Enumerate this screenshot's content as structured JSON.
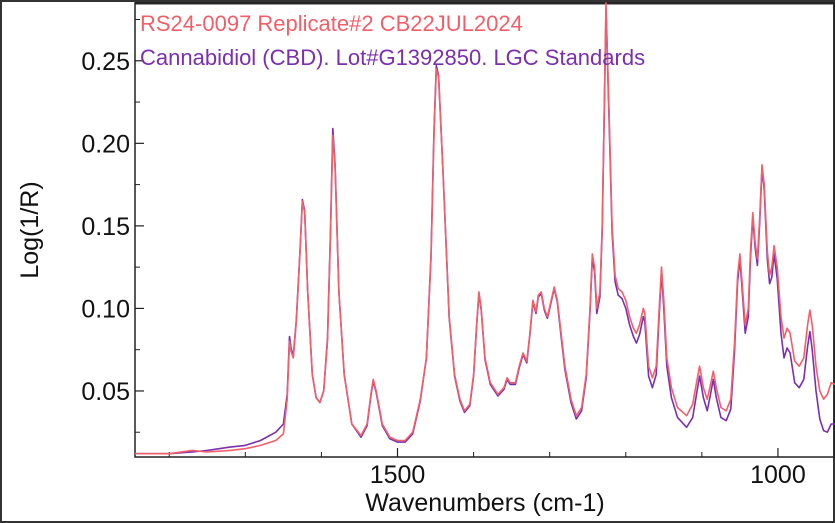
{
  "chart_data": {
    "type": "line",
    "title": "",
    "xlabel": "Wavenumbers (cm-1)",
    "ylabel": "Log(1/R)",
    "x_reversed": true,
    "xlim": [
      1845,
      925
    ],
    "ylim": [
      0.01,
      0.285
    ],
    "x_ticks": [
      1500,
      1000
    ],
    "x_tick_labels": [
      "1500",
      "1000"
    ],
    "y_ticks": [
      0.05,
      0.1,
      0.15,
      0.2,
      0.25
    ],
    "y_tick_labels": [
      "0.05",
      "0.10",
      "0.15",
      "0.20",
      "0.25"
    ],
    "grid": false,
    "legend_placement": "top-left",
    "series": [
      {
        "name": "RS24-0097 Replicate#2 CB22JUL2024",
        "color": "#f0606a",
        "points": [
          [
            1845,
            0.012
          ],
          [
            1800,
            0.012
          ],
          [
            1770,
            0.014
          ],
          [
            1750,
            0.013
          ],
          [
            1720,
            0.014
          ],
          [
            1700,
            0.015
          ],
          [
            1680,
            0.017
          ],
          [
            1660,
            0.02
          ],
          [
            1650,
            0.024
          ],
          [
            1645,
            0.045
          ],
          [
            1642,
            0.08
          ],
          [
            1640,
            0.074
          ],
          [
            1637,
            0.07
          ],
          [
            1633,
            0.092
          ],
          [
            1628,
            0.135
          ],
          [
            1625,
            0.165
          ],
          [
            1622,
            0.158
          ],
          [
            1618,
            0.11
          ],
          [
            1612,
            0.06
          ],
          [
            1607,
            0.046
          ],
          [
            1602,
            0.043
          ],
          [
            1597,
            0.05
          ],
          [
            1592,
            0.08
          ],
          [
            1588,
            0.145
          ],
          [
            1585,
            0.205
          ],
          [
            1582,
            0.185
          ],
          [
            1577,
            0.11
          ],
          [
            1570,
            0.06
          ],
          [
            1560,
            0.03
          ],
          [
            1548,
            0.023
          ],
          [
            1540,
            0.03
          ],
          [
            1535,
            0.048
          ],
          [
            1532,
            0.057
          ],
          [
            1528,
            0.05
          ],
          [
            1520,
            0.03
          ],
          [
            1510,
            0.022
          ],
          [
            1500,
            0.02
          ],
          [
            1490,
            0.02
          ],
          [
            1480,
            0.025
          ],
          [
            1470,
            0.045
          ],
          [
            1462,
            0.07
          ],
          [
            1456,
            0.13
          ],
          [
            1452,
            0.205
          ],
          [
            1449,
            0.245
          ],
          [
            1446,
            0.24
          ],
          [
            1440,
            0.18
          ],
          [
            1432,
            0.095
          ],
          [
            1425,
            0.06
          ],
          [
            1418,
            0.045
          ],
          [
            1412,
            0.038
          ],
          [
            1405,
            0.042
          ],
          [
            1400,
            0.06
          ],
          [
            1396,
            0.09
          ],
          [
            1393,
            0.11
          ],
          [
            1390,
            0.1
          ],
          [
            1385,
            0.07
          ],
          [
            1378,
            0.055
          ],
          [
            1368,
            0.048
          ],
          [
            1360,
            0.052
          ],
          [
            1356,
            0.058
          ],
          [
            1352,
            0.055
          ],
          [
            1345,
            0.055
          ],
          [
            1340,
            0.065
          ],
          [
            1335,
            0.073
          ],
          [
            1330,
            0.068
          ],
          [
            1326,
            0.085
          ],
          [
            1322,
            0.105
          ],
          [
            1318,
            0.098
          ],
          [
            1315,
            0.108
          ],
          [
            1311,
            0.11
          ],
          [
            1307,
            0.1
          ],
          [
            1303,
            0.095
          ],
          [
            1298,
            0.105
          ],
          [
            1294,
            0.113
          ],
          [
            1290,
            0.105
          ],
          [
            1285,
            0.085
          ],
          [
            1280,
            0.065
          ],
          [
            1272,
            0.045
          ],
          [
            1265,
            0.035
          ],
          [
            1258,
            0.04
          ],
          [
            1252,
            0.06
          ],
          [
            1247,
            0.1
          ],
          [
            1244,
            0.133
          ],
          [
            1241,
            0.125
          ],
          [
            1238,
            0.1
          ],
          [
            1234,
            0.11
          ],
          [
            1231,
            0.15
          ],
          [
            1228,
            0.23
          ],
          [
            1226,
            0.285
          ],
          [
            1222,
            0.22
          ],
          [
            1218,
            0.15
          ],
          [
            1214,
            0.12
          ],
          [
            1210,
            0.112
          ],
          [
            1205,
            0.11
          ],
          [
            1200,
            0.105
          ],
          [
            1195,
            0.095
          ],
          [
            1190,
            0.088
          ],
          [
            1186,
            0.085
          ],
          [
            1182,
            0.09
          ],
          [
            1177,
            0.1
          ],
          [
            1175,
            0.097
          ],
          [
            1170,
            0.065
          ],
          [
            1165,
            0.058
          ],
          [
            1160,
            0.065
          ],
          [
            1156,
            0.1
          ],
          [
            1153,
            0.125
          ],
          [
            1150,
            0.105
          ],
          [
            1146,
            0.07
          ],
          [
            1140,
            0.052
          ],
          [
            1132,
            0.04
          ],
          [
            1120,
            0.035
          ],
          [
            1112,
            0.042
          ],
          [
            1107,
            0.055
          ],
          [
            1103,
            0.065
          ],
          [
            1098,
            0.052
          ],
          [
            1093,
            0.045
          ],
          [
            1089,
            0.053
          ],
          [
            1085,
            0.062
          ],
          [
            1081,
            0.052
          ],
          [
            1075,
            0.04
          ],
          [
            1068,
            0.038
          ],
          [
            1062,
            0.045
          ],
          [
            1057,
            0.08
          ],
          [
            1053,
            0.12
          ],
          [
            1050,
            0.133
          ],
          [
            1047,
            0.115
          ],
          [
            1043,
            0.09
          ],
          [
            1039,
            0.1
          ],
          [
            1036,
            0.135
          ],
          [
            1033,
            0.158
          ],
          [
            1030,
            0.14
          ],
          [
            1027,
            0.13
          ],
          [
            1024,
            0.155
          ],
          [
            1021,
            0.187
          ],
          [
            1018,
            0.175
          ],
          [
            1014,
            0.135
          ],
          [
            1011,
            0.12
          ],
          [
            1008,
            0.125
          ],
          [
            1005,
            0.138
          ],
          [
            1001,
            0.125
          ],
          [
            996,
            0.095
          ],
          [
            992,
            0.082
          ],
          [
            988,
            0.088
          ],
          [
            984,
            0.085
          ],
          [
            978,
            0.068
          ],
          [
            972,
            0.065
          ],
          [
            966,
            0.07
          ],
          [
            961,
            0.09
          ],
          [
            958,
            0.099
          ],
          [
            955,
            0.09
          ],
          [
            950,
            0.065
          ],
          [
            945,
            0.05
          ],
          [
            940,
            0.045
          ],
          [
            935,
            0.048
          ],
          [
            930,
            0.055
          ],
          [
            925,
            0.054
          ]
        ]
      },
      {
        "name": "Cannabidiol (CBD). Lot#G1392850. LGC Standards",
        "color": "#7b2fae",
        "points": [
          [
            1845,
            0.012
          ],
          [
            1800,
            0.012
          ],
          [
            1770,
            0.013
          ],
          [
            1750,
            0.014
          ],
          [
            1720,
            0.016
          ],
          [
            1700,
            0.017
          ],
          [
            1680,
            0.02
          ],
          [
            1660,
            0.025
          ],
          [
            1650,
            0.03
          ],
          [
            1645,
            0.048
          ],
          [
            1642,
            0.083
          ],
          [
            1640,
            0.076
          ],
          [
            1637,
            0.071
          ],
          [
            1633,
            0.093
          ],
          [
            1628,
            0.136
          ],
          [
            1625,
            0.166
          ],
          [
            1622,
            0.159
          ],
          [
            1618,
            0.11
          ],
          [
            1612,
            0.06
          ],
          [
            1607,
            0.046
          ],
          [
            1602,
            0.043
          ],
          [
            1597,
            0.05
          ],
          [
            1592,
            0.082
          ],
          [
            1588,
            0.147
          ],
          [
            1585,
            0.209
          ],
          [
            1582,
            0.187
          ],
          [
            1577,
            0.11
          ],
          [
            1570,
            0.06
          ],
          [
            1560,
            0.03
          ],
          [
            1548,
            0.022
          ],
          [
            1540,
            0.029
          ],
          [
            1535,
            0.047
          ],
          [
            1532,
            0.056
          ],
          [
            1528,
            0.049
          ],
          [
            1520,
            0.029
          ],
          [
            1510,
            0.021
          ],
          [
            1500,
            0.019
          ],
          [
            1490,
            0.019
          ],
          [
            1480,
            0.024
          ],
          [
            1470,
            0.044
          ],
          [
            1462,
            0.07
          ],
          [
            1456,
            0.132
          ],
          [
            1452,
            0.208
          ],
          [
            1449,
            0.247
          ],
          [
            1446,
            0.241
          ],
          [
            1440,
            0.18
          ],
          [
            1432,
            0.094
          ],
          [
            1425,
            0.059
          ],
          [
            1418,
            0.044
          ],
          [
            1412,
            0.037
          ],
          [
            1405,
            0.041
          ],
          [
            1400,
            0.059
          ],
          [
            1396,
            0.089
          ],
          [
            1393,
            0.109
          ],
          [
            1390,
            0.099
          ],
          [
            1385,
            0.069
          ],
          [
            1378,
            0.054
          ],
          [
            1368,
            0.047
          ],
          [
            1360,
            0.051
          ],
          [
            1356,
            0.057
          ],
          [
            1352,
            0.054
          ],
          [
            1345,
            0.054
          ],
          [
            1340,
            0.064
          ],
          [
            1335,
            0.072
          ],
          [
            1330,
            0.067
          ],
          [
            1326,
            0.084
          ],
          [
            1322,
            0.104
          ],
          [
            1318,
            0.097
          ],
          [
            1315,
            0.107
          ],
          [
            1311,
            0.109
          ],
          [
            1307,
            0.099
          ],
          [
            1303,
            0.094
          ],
          [
            1298,
            0.104
          ],
          [
            1294,
            0.112
          ],
          [
            1290,
            0.104
          ],
          [
            1285,
            0.083
          ],
          [
            1280,
            0.063
          ],
          [
            1272,
            0.043
          ],
          [
            1265,
            0.033
          ],
          [
            1258,
            0.038
          ],
          [
            1252,
            0.058
          ],
          [
            1247,
            0.098
          ],
          [
            1244,
            0.13
          ],
          [
            1241,
            0.122
          ],
          [
            1238,
            0.097
          ],
          [
            1234,
            0.107
          ],
          [
            1231,
            0.147
          ],
          [
            1228,
            0.227
          ],
          [
            1226,
            0.282
          ],
          [
            1222,
            0.216
          ],
          [
            1218,
            0.146
          ],
          [
            1214,
            0.116
          ],
          [
            1210,
            0.108
          ],
          [
            1205,
            0.106
          ],
          [
            1200,
            0.1
          ],
          [
            1195,
            0.09
          ],
          [
            1190,
            0.083
          ],
          [
            1186,
            0.079
          ],
          [
            1182,
            0.084
          ],
          [
            1177,
            0.095
          ],
          [
            1175,
            0.092
          ],
          [
            1170,
            0.059
          ],
          [
            1165,
            0.052
          ],
          [
            1160,
            0.06
          ],
          [
            1156,
            0.096
          ],
          [
            1153,
            0.122
          ],
          [
            1150,
            0.1
          ],
          [
            1146,
            0.065
          ],
          [
            1140,
            0.046
          ],
          [
            1132,
            0.034
          ],
          [
            1120,
            0.028
          ],
          [
            1112,
            0.034
          ],
          [
            1107,
            0.048
          ],
          [
            1103,
            0.059
          ],
          [
            1098,
            0.046
          ],
          [
            1093,
            0.038
          ],
          [
            1089,
            0.047
          ],
          [
            1085,
            0.057
          ],
          [
            1081,
            0.046
          ],
          [
            1075,
            0.034
          ],
          [
            1068,
            0.032
          ],
          [
            1062,
            0.039
          ],
          [
            1057,
            0.075
          ],
          [
            1053,
            0.116
          ],
          [
            1050,
            0.13
          ],
          [
            1047,
            0.111
          ],
          [
            1043,
            0.085
          ],
          [
            1039,
            0.095
          ],
          [
            1036,
            0.131
          ],
          [
            1033,
            0.155
          ],
          [
            1030,
            0.137
          ],
          [
            1027,
            0.126
          ],
          [
            1024,
            0.152
          ],
          [
            1021,
            0.185
          ],
          [
            1018,
            0.172
          ],
          [
            1014,
            0.13
          ],
          [
            1011,
            0.115
          ],
          [
            1008,
            0.119
          ],
          [
            1005,
            0.133
          ],
          [
            1001,
            0.118
          ],
          [
            996,
            0.085
          ],
          [
            992,
            0.07
          ],
          [
            988,
            0.076
          ],
          [
            984,
            0.073
          ],
          [
            978,
            0.055
          ],
          [
            972,
            0.052
          ],
          [
            966,
            0.057
          ],
          [
            961,
            0.077
          ],
          [
            958,
            0.086
          ],
          [
            955,
            0.075
          ],
          [
            950,
            0.05
          ],
          [
            945,
            0.033
          ],
          [
            940,
            0.026
          ],
          [
            935,
            0.025
          ],
          [
            930,
            0.03
          ],
          [
            925,
            0.03
          ]
        ]
      }
    ]
  }
}
